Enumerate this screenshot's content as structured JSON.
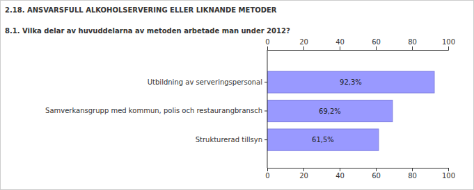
{
  "chart_data": {
    "type": "bar",
    "orientation": "horizontal",
    "title": "2.18. ANSVARSFULL ALKOHOLSERVERING ELLER LIKNANDE METODER",
    "subtitle": "8.1. Vilka delar av huvuddelarna av metoden arbetade man under 2012?",
    "categories": [
      "Utbildning av serveringspersonal",
      "Samverkansgrupp med kommun, polis och restaurangbransch",
      "Strukturerad tillsyn"
    ],
    "values": [
      92.3,
      69.2,
      61.5
    ],
    "value_labels": [
      "92,3%",
      "69,2%",
      "61,5%"
    ],
    "data_labels": true,
    "color": "#9999ff",
    "xlim": [
      0,
      100
    ],
    "xticks": [
      0,
      20,
      40,
      60,
      80,
      100
    ],
    "grid": false
  }
}
